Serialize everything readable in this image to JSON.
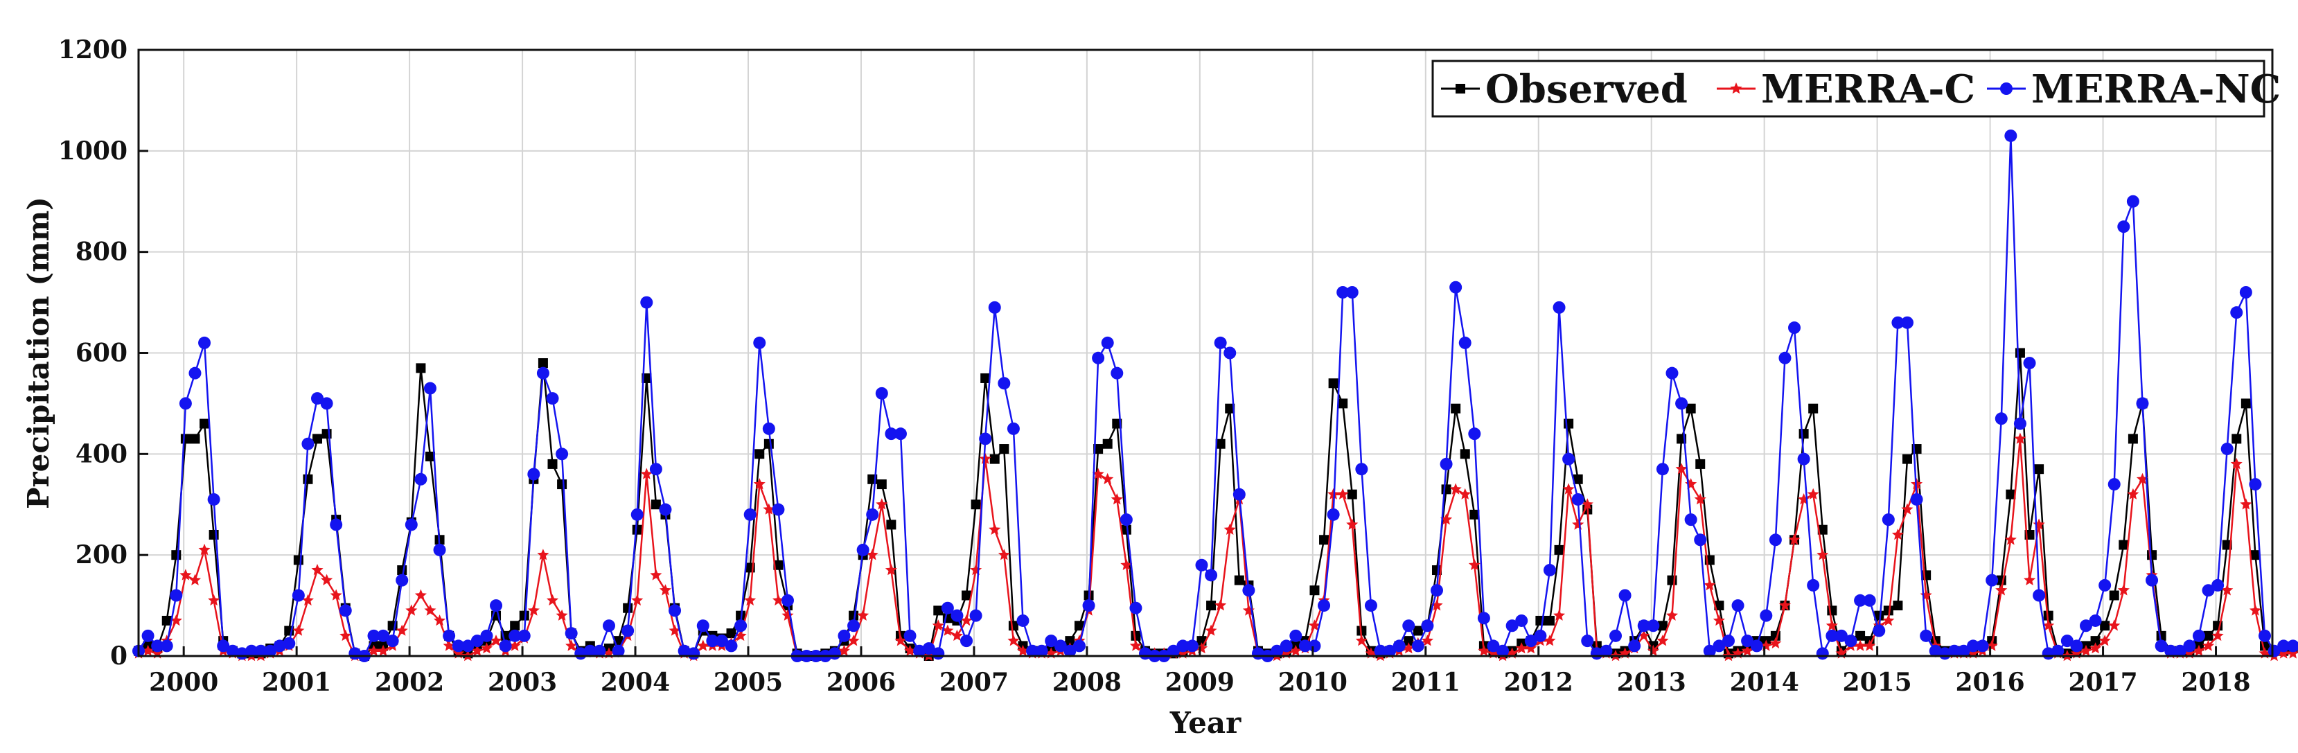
{
  "chart_data": {
    "type": "line",
    "title": "",
    "xlabel": "Year",
    "ylabel": "Precipitation (mm)",
    "ylim": [
      0,
      1200
    ],
    "yticks": [
      0,
      200,
      400,
      600,
      800,
      1000,
      1200
    ],
    "x_start": 1999.6,
    "x_end": 2018.5,
    "x_step": 0.08333,
    "xtick_labels": [
      "2000",
      "2001",
      "2002",
      "2003",
      "2004",
      "2005",
      "2006",
      "2007",
      "2008",
      "2009",
      "2010",
      "2011",
      "2012",
      "2013",
      "2014",
      "2015",
      "2016",
      "2017",
      "2018"
    ],
    "xtick_values": [
      2000,
      2001,
      2002,
      2003,
      2004,
      2005,
      2006,
      2007,
      2008,
      2009,
      2010,
      2011,
      2012,
      2013,
      2014,
      2015,
      2016,
      2017,
      2018
    ],
    "grid": true,
    "legend_position": "top-right",
    "series": [
      {
        "name": "Observed",
        "color": "#000000",
        "marker": "square",
        "values": [
          10,
          20,
          15,
          70,
          200,
          430,
          430,
          460,
          240,
          30,
          10,
          5,
          5,
          5,
          15,
          20,
          50,
          190,
          350,
          430,
          440,
          270,
          95,
          5,
          0,
          20,
          20,
          60,
          170,
          265,
          570,
          395,
          230,
          40,
          10,
          5,
          20,
          30,
          80,
          40,
          60,
          80,
          350,
          580,
          380,
          340,
          45,
          10,
          20,
          10,
          15,
          30,
          95,
          250,
          550,
          300,
          280,
          95,
          10,
          5,
          50,
          40,
          35,
          45,
          80,
          175,
          400,
          420,
          180,
          100,
          5,
          0,
          0,
          5,
          10,
          30,
          80,
          200,
          350,
          340,
          260,
          40,
          15,
          10,
          0,
          90,
          75,
          70,
          120,
          300,
          550,
          390,
          410,
          60,
          20,
          10,
          10,
          15,
          20,
          30,
          60,
          120,
          410,
          420,
          460,
          250,
          40,
          10,
          5,
          5,
          5,
          10,
          20,
          30,
          100,
          420,
          490,
          150,
          140,
          10,
          5,
          5,
          10,
          20,
          30,
          130,
          230,
          540,
          500,
          320,
          50,
          10,
          5,
          10,
          20,
          30,
          50,
          60,
          170,
          330,
          490,
          400,
          280,
          20,
          10,
          5,
          10,
          25,
          30,
          70,
          70,
          210,
          460,
          350,
          290,
          20,
          10,
          5,
          10,
          30,
          60,
          20,
          60,
          150,
          430,
          490,
          380,
          190,
          100,
          5,
          10,
          20,
          30,
          30,
          40,
          100,
          230,
          440,
          490,
          250,
          90,
          10,
          30,
          40,
          30,
          80,
          90,
          100,
          390,
          410,
          160,
          30,
          10,
          10,
          10,
          10,
          20,
          30,
          150,
          320,
          600,
          240,
          370,
          80,
          10,
          5,
          10,
          20,
          30,
          60,
          120,
          220,
          430,
          500,
          200,
          40,
          10,
          10,
          10,
          20,
          40,
          60,
          220,
          430,
          500,
          200,
          20,
          10,
          10,
          15
        ]
      },
      {
        "name": "MERRA-C",
        "color": "#e8141c",
        "marker": "star",
        "values": [
          5,
          10,
          5,
          30,
          70,
          160,
          150,
          210,
          110,
          10,
          5,
          0,
          0,
          0,
          5,
          10,
          20,
          50,
          110,
          170,
          150,
          120,
          40,
          0,
          0,
          10,
          10,
          20,
          50,
          90,
          120,
          90,
          70,
          20,
          5,
          0,
          10,
          15,
          30,
          10,
          20,
          35,
          90,
          200,
          110,
          80,
          20,
          5,
          10,
          5,
          5,
          10,
          40,
          110,
          360,
          160,
          130,
          50,
          5,
          0,
          20,
          20,
          20,
          25,
          40,
          110,
          340,
          290,
          110,
          80,
          0,
          0,
          0,
          0,
          5,
          10,
          30,
          80,
          200,
          300,
          170,
          30,
          10,
          5,
          0,
          60,
          50,
          40,
          70,
          170,
          390,
          250,
          200,
          30,
          10,
          5,
          5,
          5,
          10,
          15,
          30,
          90,
          360,
          350,
          310,
          180,
          20,
          5,
          5,
          5,
          5,
          5,
          10,
          15,
          50,
          100,
          250,
          310,
          90,
          5,
          0,
          0,
          5,
          10,
          15,
          60,
          110,
          320,
          320,
          260,
          30,
          5,
          0,
          5,
          10,
          15,
          25,
          30,
          100,
          270,
          330,
          320,
          180,
          10,
          5,
          0,
          5,
          15,
          15,
          30,
          30,
          80,
          330,
          260,
          300,
          10,
          5,
          0,
          5,
          15,
          40,
          10,
          30,
          80,
          370,
          340,
          310,
          140,
          70,
          0,
          5,
          10,
          20,
          20,
          25,
          100,
          230,
          310,
          320,
          200,
          60,
          5,
          20,
          20,
          20,
          60,
          70,
          240,
          290,
          340,
          120,
          20,
          5,
          5,
          5,
          5,
          10,
          20,
          130,
          230,
          430,
          150,
          260,
          60,
          5,
          0,
          5,
          10,
          15,
          30,
          60,
          130,
          320,
          350,
          160,
          20,
          5,
          5,
          5,
          10,
          20,
          40,
          130,
          380,
          300,
          90,
          5,
          0,
          5,
          5
        ]
      },
      {
        "name": "MERRA-NC",
        "color": "#1414f0",
        "marker": "circle",
        "values": [
          10,
          40,
          20,
          20,
          120,
          500,
          560,
          620,
          310,
          20,
          10,
          5,
          10,
          10,
          10,
          20,
          25,
          120,
          420,
          510,
          500,
          260,
          90,
          5,
          0,
          40,
          40,
          30,
          150,
          260,
          350,
          530,
          210,
          40,
          20,
          20,
          30,
          40,
          100,
          20,
          40,
          40,
          360,
          560,
          510,
          400,
          45,
          5,
          10,
          10,
          60,
          10,
          50,
          280,
          700,
          370,
          290,
          90,
          10,
          5,
          60,
          30,
          30,
          20,
          60,
          280,
          620,
          450,
          290,
          110,
          0,
          0,
          0,
          0,
          5,
          40,
          60,
          210,
          280,
          520,
          440,
          440,
          40,
          10,
          15,
          5,
          95,
          80,
          30,
          80,
          430,
          690,
          540,
          450,
          70,
          10,
          10,
          30,
          20,
          10,
          20,
          100,
          590,
          620,
          560,
          270,
          95,
          5,
          0,
          0,
          10,
          20,
          20,
          180,
          160,
          620,
          600,
          320,
          130,
          5,
          0,
          10,
          20,
          40,
          20,
          20,
          100,
          280,
          720,
          720,
          370,
          100,
          10,
          10,
          20,
          60,
          20,
          60,
          130,
          380,
          730,
          620,
          440,
          75,
          20,
          10,
          60,
          70,
          30,
          40,
          170,
          690,
          390,
          310,
          30,
          5,
          10,
          40,
          120,
          20,
          60,
          60,
          370,
          560,
          500,
          270,
          230,
          10,
          20,
          30,
          100,
          30,
          20,
          80,
          230,
          590,
          650,
          390,
          140,
          5,
          40,
          40,
          30,
          110,
          110,
          50,
          270,
          660,
          660,
          310,
          40,
          10,
          5,
          10,
          10,
          20,
          20,
          150,
          470,
          1030,
          460,
          580,
          120,
          5,
          10,
          30,
          20,
          60,
          70,
          140,
          340,
          850,
          900,
          500,
          150,
          20,
          10,
          10,
          20,
          40,
          130,
          140,
          410,
          680,
          720,
          340,
          40,
          10,
          20,
          20
        ]
      }
    ]
  }
}
